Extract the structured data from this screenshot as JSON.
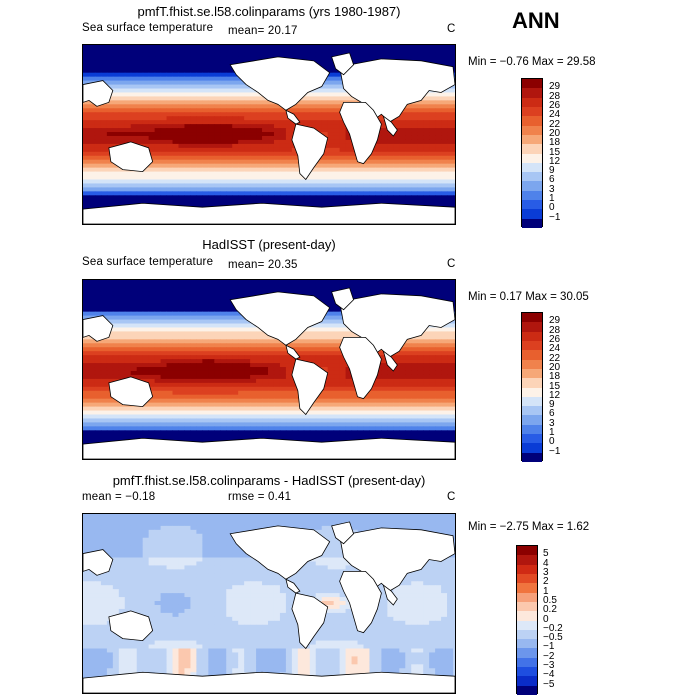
{
  "season": "ANN",
  "panels": [
    {
      "title": "pmfT.fhist.se.l58.colinparams (yrs 1980-1987)",
      "variable": "Sea surface temperature",
      "stat": "mean=  20.17",
      "unit": "C",
      "minmax": "Min =  −0.76 Max =  29.58",
      "colorbar": {
        "labels": [
          "29",
          "28",
          "26",
          "24",
          "22",
          "20",
          "18",
          "15",
          "12",
          "9",
          "6",
          "3",
          "1",
          "0",
          "−1"
        ],
        "colors": [
          "#8b0000",
          "#b0160e",
          "#cc2b14",
          "#dc4020",
          "#e8602e",
          "#f0824c",
          "#f6a878",
          "#fcd4b8",
          "#fdf2e8",
          "#d4e4f8",
          "#a8c6f4",
          "#7ca6ee",
          "#4f82ea",
          "#285ce6",
          "#0a3cd6",
          "#00007a"
        ]
      }
    },
    {
      "title": "HadISST (present-day)",
      "variable": "Sea surface temperature",
      "stat": "mean=  20.35",
      "unit": "C",
      "minmax": "Min =   0.17 Max =  30.05",
      "colorbar": {
        "labels": [
          "29",
          "28",
          "26",
          "24",
          "22",
          "20",
          "18",
          "15",
          "12",
          "9",
          "6",
          "3",
          "1",
          "0",
          "−1"
        ],
        "colors": [
          "#8b0000",
          "#b0160e",
          "#cc2b14",
          "#dc4020",
          "#e8602e",
          "#f0824c",
          "#f6a878",
          "#fcd4b8",
          "#fdf2e8",
          "#d4e4f8",
          "#a8c6f4",
          "#7ca6ee",
          "#4f82ea",
          "#285ce6",
          "#0a3cd6",
          "#00007a"
        ]
      }
    },
    {
      "title": "pmfT.fhist.se.l58.colinparams - HadISST (present-day)",
      "stat_mean": "mean =  −0.18",
      "stat_rmse": "rmse =   0.41",
      "unit": "C",
      "minmax": "Min =  −2.75 Max =   1.62",
      "colorbar": {
        "labels": [
          "5",
          "4",
          "3",
          "2",
          "1",
          "0.5",
          "0.2",
          "0",
          "−0.2",
          "−0.5",
          "−1",
          "−2",
          "−3",
          "−4",
          "−5"
        ],
        "colors": [
          "#8b0000",
          "#b0160e",
          "#d02a14",
          "#e24a24",
          "#f0743e",
          "#f6a07a",
          "#fbc8ae",
          "#fde8dc",
          "#dde8f8",
          "#bcd2f4",
          "#98b8f0",
          "#6c96ec",
          "#4272e8",
          "#1e4ee0",
          "#0a2cc8",
          "#00007a"
        ]
      }
    }
  ]
}
